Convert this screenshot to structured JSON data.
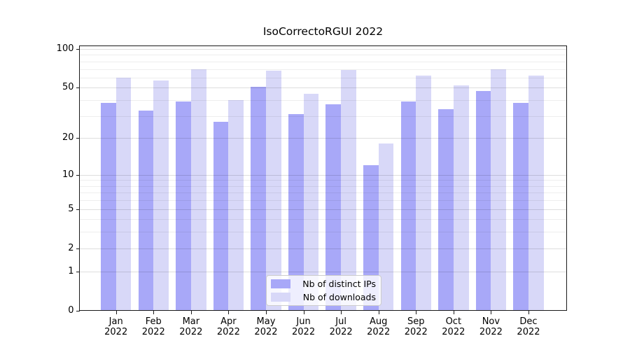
{
  "title": "IsoCorrectoRGUI 2022",
  "chart_data": {
    "type": "bar",
    "title": "IsoCorrectoRGUI 2022",
    "year_label": "2022",
    "months": [
      "Jan",
      "Feb",
      "Mar",
      "Apr",
      "May",
      "Jun",
      "Jul",
      "Aug",
      "Sep",
      "Oct",
      "Nov",
      "Dec"
    ],
    "categories": [
      "Jan 2022",
      "Feb 2022",
      "Mar 2022",
      "Apr 2022",
      "May 2022",
      "Jun 2022",
      "Jul 2022",
      "Aug 2022",
      "Sep 2022",
      "Oct 2022",
      "Nov 2022",
      "Dec 2022"
    ],
    "series": [
      {
        "name": "Nb of distinct IPs",
        "color": "#a8a8f8",
        "values": [
          38,
          33,
          39,
          27,
          51,
          31,
          37,
          12,
          39,
          34,
          47,
          38
        ]
      },
      {
        "name": "Nb of downloads",
        "color": "#d8d8f8",
        "values": [
          60,
          57,
          70,
          40,
          68,
          45,
          69,
          18,
          62,
          52,
          70,
          62
        ]
      }
    ],
    "xlabel": "",
    "ylabel": "",
    "y_axis": {
      "scale": "log1p",
      "tick_values": [
        0,
        1,
        2,
        5,
        10,
        20,
        50,
        100
      ],
      "tick_labels": [
        "0",
        "1",
        "2",
        "5",
        "10",
        "20",
        "50",
        "100"
      ],
      "minor_gridline_values": [
        3,
        4,
        6,
        7,
        8,
        9,
        30,
        40,
        60,
        70,
        80,
        90
      ],
      "ylim": [
        0,
        106
      ]
    },
    "grid": true,
    "legend": {
      "position": "lower-center",
      "entries": [
        "Nb of distinct IPs",
        "Nb of downloads"
      ]
    }
  },
  "colors": {
    "bar_distinct_ips": "#a8a8f8",
    "bar_downloads": "#d8d8f8",
    "axis_line": "#1a1a1a",
    "text": "#000000",
    "legend_border": "#cccccc",
    "background": "#ffffff"
  }
}
